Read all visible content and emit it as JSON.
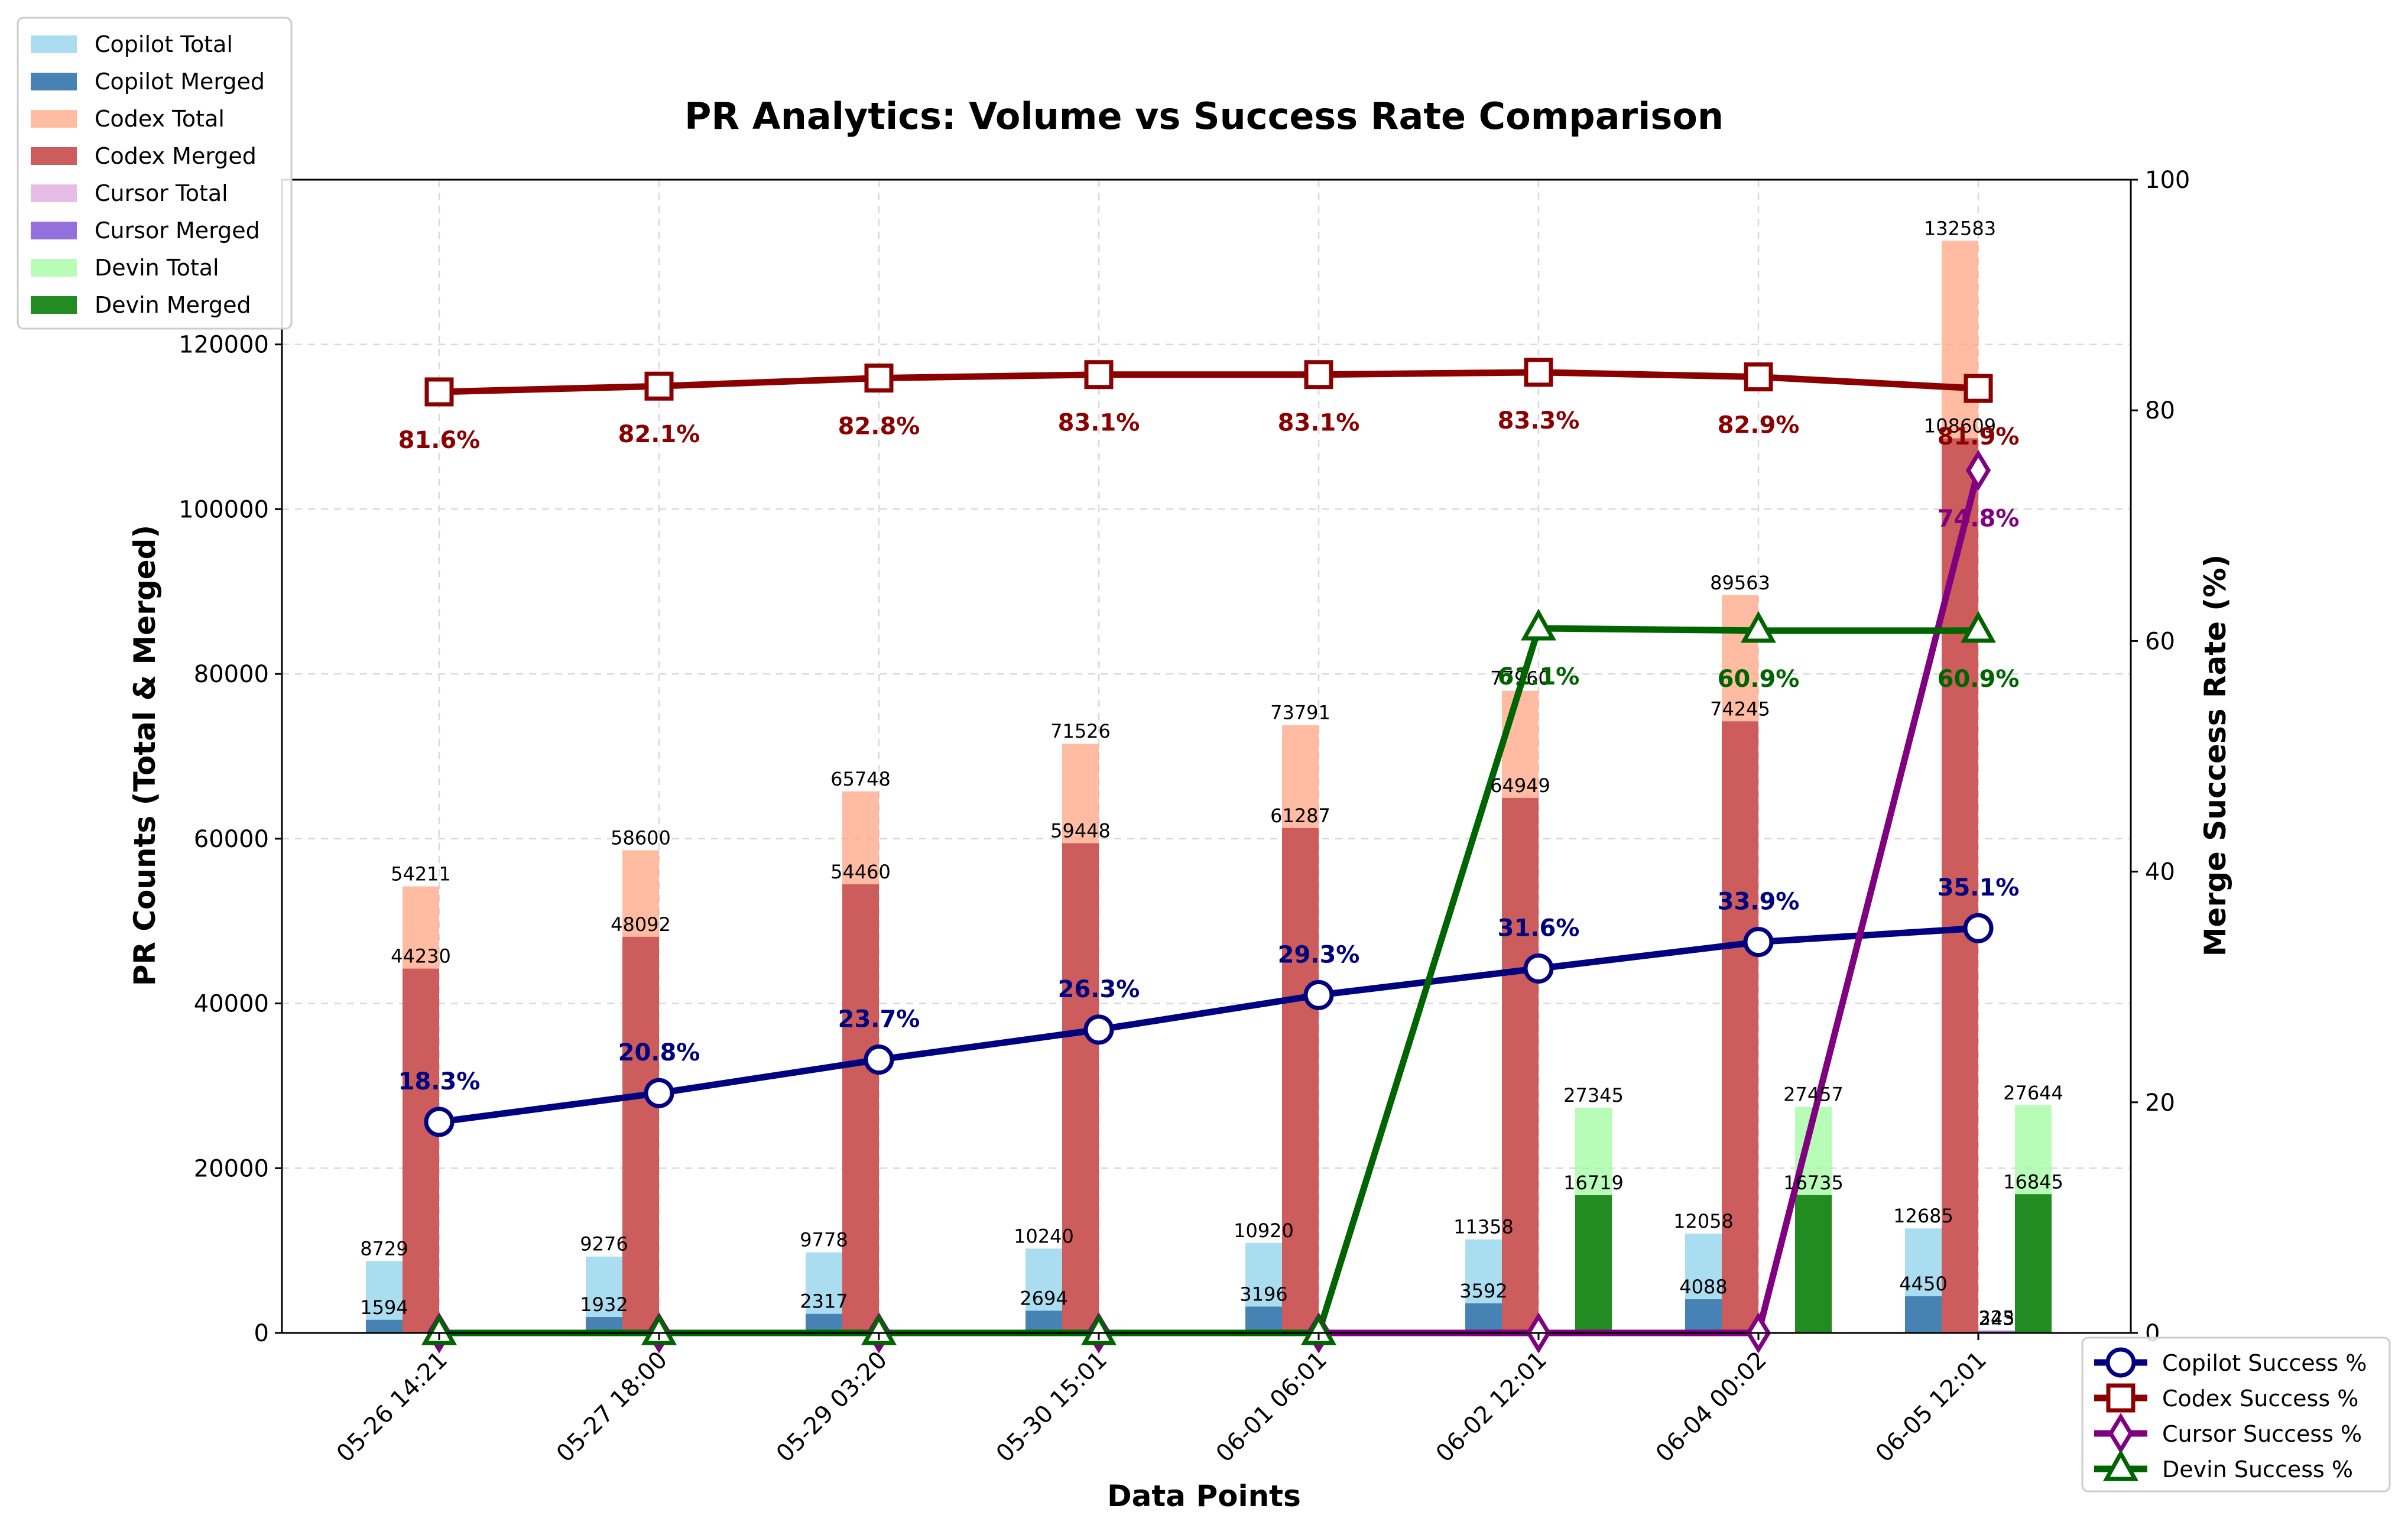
{
  "chart_data": {
    "type": "bar",
    "title": "PR Analytics: Volume vs Success Rate Comparison",
    "xlabel": "Data Points",
    "ylabel": "PR Counts (Total & Merged)",
    "y2label": "Merge Success Rate (%)",
    "categories": [
      "05-26 14:21",
      "05-27 18:00",
      "05-29 03:20",
      "05-30 15:01",
      "06-01 06:01",
      "06-02 12:01",
      "06-04 00:02",
      "06-05 12:01"
    ],
    "ylim": [
      0,
      140000
    ],
    "y_ticks": [
      0,
      20000,
      40000,
      60000,
      80000,
      100000,
      120000
    ],
    "y_tick_labels": [
      "0",
      "20000",
      "40000",
      "60000",
      "80000",
      "100000",
      "120000"
    ],
    "y2lim": [
      0,
      100
    ],
    "y2_ticks": [
      0,
      20,
      40,
      60,
      80,
      100
    ],
    "y2_tick_labels": [
      "0",
      "20",
      "40",
      "60",
      "80",
      "100"
    ],
    "grid": true,
    "bar_series": [
      {
        "name": "Copilot Total",
        "color": "#87ceeb",
        "opacity": 0.7,
        "group": 0,
        "values": [
          8729,
          9276,
          9778,
          10240,
          10920,
          11358,
          12058,
          12685
        ],
        "labels": [
          "8729",
          "9276",
          "9778",
          "10240",
          "10920",
          "11358",
          "12058",
          "12685"
        ]
      },
      {
        "name": "Copilot Merged",
        "color": "#4682b4",
        "opacity": 1.0,
        "group": 0,
        "values": [
          1594,
          1932,
          2317,
          2694,
          3196,
          3592,
          4088,
          4450
        ],
        "labels": [
          "1594",
          "1932",
          "2317",
          "2694",
          "3196",
          "3592",
          "4088",
          "4450"
        ]
      },
      {
        "name": "Codex Total",
        "color": "#ffa07a",
        "opacity": 0.7,
        "group": 1,
        "values": [
          54211,
          58600,
          65748,
          71526,
          73791,
          77960,
          89563,
          132583
        ],
        "labels": [
          "54211",
          "58600",
          "65748",
          "71526",
          "73791",
          "77960",
          "89563",
          "132583"
        ]
      },
      {
        "name": "Codex Merged",
        "color": "#cd5c5c",
        "opacity": 1.0,
        "group": 1,
        "values": [
          44230,
          48092,
          54460,
          59448,
          61287,
          64949,
          74245,
          108609
        ],
        "labels": [
          "44230",
          "48092",
          "54460",
          "59448",
          "61287",
          "64949",
          "74245",
          "108609"
        ]
      },
      {
        "name": "Cursor Total",
        "color": "#dda0dd",
        "opacity": 0.7,
        "group": 2,
        "values": [
          0,
          0,
          0,
          0,
          0,
          0,
          0,
          325
        ],
        "labels": [
          "",
          "",
          "",
          "",
          "",
          "",
          "",
          "325"
        ]
      },
      {
        "name": "Cursor Merged",
        "color": "#9370db",
        "opacity": 1.0,
        "group": 2,
        "values": [
          0,
          0,
          0,
          0,
          0,
          0,
          0,
          243
        ],
        "labels": [
          "",
          "",
          "",
          "",
          "",
          "",
          "",
          "243"
        ]
      },
      {
        "name": "Devin Total",
        "color": "#98fb98",
        "opacity": 0.7,
        "group": 3,
        "values": [
          0,
          0,
          0,
          0,
          0,
          27345,
          27457,
          27644
        ],
        "labels": [
          "",
          "",
          "",
          "",
          "",
          "27345",
          "27457",
          "27644"
        ]
      },
      {
        "name": "Devin Merged",
        "color": "#228b22",
        "opacity": 1.0,
        "group": 3,
        "values": [
          0,
          0,
          0,
          0,
          0,
          16719,
          16735,
          16845
        ],
        "labels": [
          "",
          "",
          "",
          "",
          "",
          "16719",
          "16735",
          "16845"
        ]
      }
    ],
    "line_series": [
      {
        "name": "Copilot Success %",
        "color": "#000080",
        "marker": "circle",
        "label_pos": "above",
        "values": [
          18.3,
          20.8,
          23.7,
          26.3,
          29.3,
          31.6,
          33.9,
          35.1
        ],
        "labels": [
          "18.3%",
          "20.8%",
          "23.7%",
          "26.3%",
          "29.3%",
          "31.6%",
          "33.9%",
          "35.1%"
        ]
      },
      {
        "name": "Codex Success %",
        "color": "#8b0000",
        "marker": "square",
        "label_pos": "below",
        "values": [
          81.6,
          82.1,
          82.8,
          83.1,
          83.1,
          83.3,
          82.9,
          81.9
        ],
        "labels": [
          "81.6%",
          "82.1%",
          "82.8%",
          "83.1%",
          "83.1%",
          "83.3%",
          "82.9%",
          "81.9%"
        ]
      },
      {
        "name": "Cursor Success %",
        "color": "#800080",
        "marker": "diamond",
        "label_pos": "below",
        "values": [
          0,
          0,
          0,
          0,
          0,
          0,
          0,
          74.8
        ],
        "labels": [
          "",
          "",
          "",
          "",
          "",
          "",
          "",
          "74.8%"
        ]
      },
      {
        "name": "Devin Success %",
        "color": "#006400",
        "marker": "triangle",
        "label_pos": "below",
        "values": [
          0,
          0,
          0,
          0,
          0,
          61.1,
          60.9,
          60.9
        ],
        "labels": [
          "",
          "",
          "",
          "",
          "",
          "61.1%",
          "60.9%",
          "60.9%"
        ]
      }
    ],
    "bar_legend_position": "upper-left",
    "line_legend_position": "lower-right"
  }
}
